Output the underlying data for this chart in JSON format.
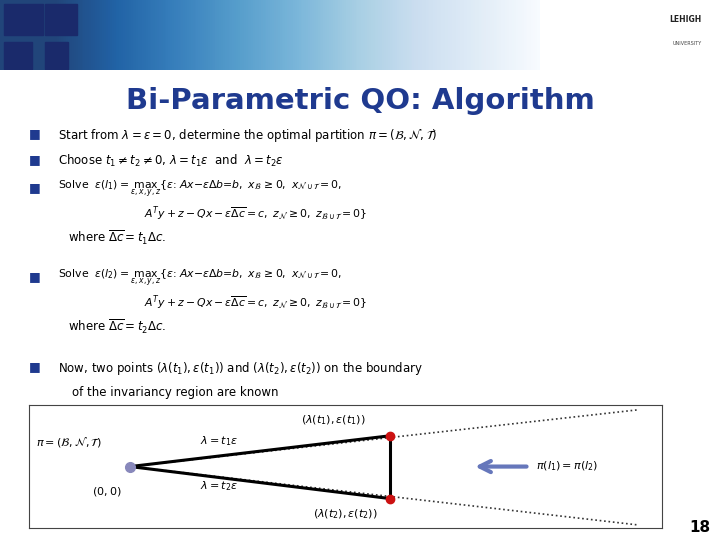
{
  "title": "Bi-Parametric QO: Algorithm",
  "title_color": "#1F3A8F",
  "title_fontsize": 21,
  "bg_color": "#FFFFFF",
  "slide_number": "18",
  "bullet_color": "#1F3A8F"
}
